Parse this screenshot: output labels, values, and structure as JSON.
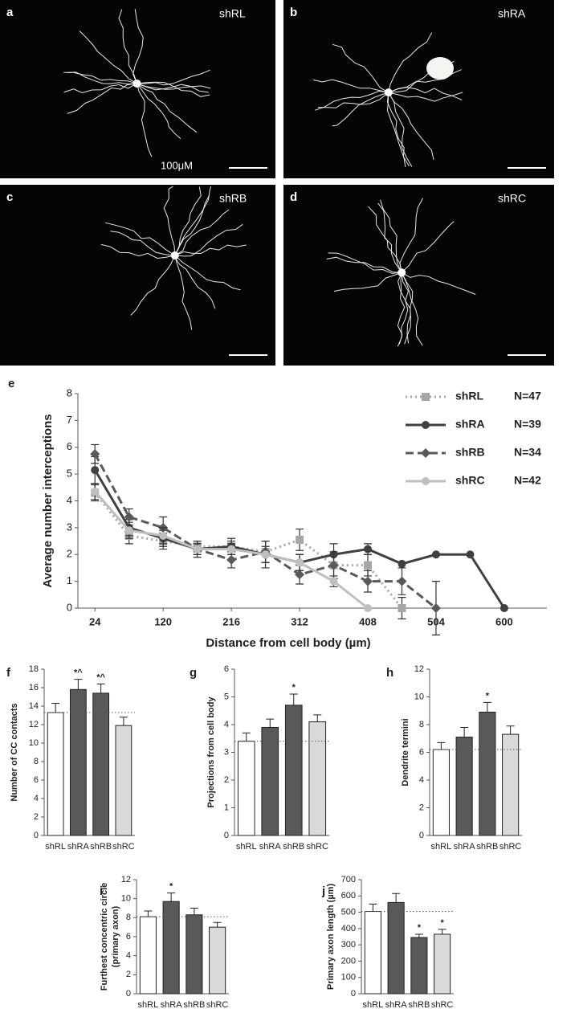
{
  "image_panels": [
    {
      "letter": "a",
      "label": "shRL",
      "scale": "100μM"
    },
    {
      "letter": "b",
      "label": "shRA"
    },
    {
      "letter": "c",
      "label": "shRB"
    },
    {
      "letter": "d",
      "label": "shRC"
    }
  ],
  "chart_data": [
    {
      "type": "line",
      "panel": "e",
      "ylabel": "Average number interceptions",
      "xlabel": "Distance from cell body (µm)",
      "x": [
        24,
        72,
        120,
        168,
        216,
        264,
        312,
        360,
        408,
        456,
        504,
        552,
        600
      ],
      "xlim": [
        0,
        660
      ],
      "xticks": [
        24,
        120,
        216,
        312,
        408,
        504,
        600
      ],
      "ylim": [
        0,
        8
      ],
      "yticks": [
        0,
        1,
        2,
        3,
        4,
        5,
        6,
        7,
        8
      ],
      "series": [
        {
          "name": "shRL",
          "note": "N=47",
          "color": "#a6a6a6",
          "line_style": "dotted",
          "marker": "square",
          "values": [
            4.3,
            2.7,
            2.5,
            2.3,
            2.3,
            2.1,
            2.55,
            1.6,
            1.6,
            0,
            null,
            null,
            null
          ],
          "errors": [
            0.3,
            0.3,
            0.3,
            0.2,
            0.2,
            0.4,
            0.4,
            0.5,
            0.4,
            0.4,
            null,
            null,
            null
          ]
        },
        {
          "name": "shRA",
          "note": "N=39",
          "color": "#404040",
          "line_style": "solid",
          "marker": "circle",
          "values": [
            5.15,
            3.0,
            2.6,
            2.2,
            2.3,
            2.0,
            1.7,
            2.0,
            2.2,
            1.65,
            2.0,
            2.0,
            0
          ],
          "errors": [
            0.5,
            0.3,
            0.3,
            0.2,
            0.3,
            0.5,
            0.3,
            0.4,
            0.2,
            null,
            null,
            null,
            null
          ]
        },
        {
          "name": "shRB",
          "note": "N=34",
          "color": "#595959",
          "line_style": "dashed",
          "marker": "diamond",
          "values": [
            5.75,
            3.4,
            3.0,
            2.2,
            1.8,
            2.1,
            1.25,
            1.6,
            1.0,
            1.0,
            0,
            null,
            null
          ],
          "errors": [
            0.35,
            0.3,
            0.4,
            0.3,
            0.3,
            0.4,
            0.35,
            0.5,
            0.4,
            0.5,
            1.0,
            null,
            null
          ]
        },
        {
          "name": "shRC",
          "note": "N=42",
          "color": "#bfbfbf",
          "line_style": "solid",
          "marker": "circle",
          "values": [
            4.35,
            2.9,
            2.7,
            2.2,
            2.2,
            2.0,
            1.7,
            1.0,
            0,
            null,
            null,
            null,
            null
          ],
          "errors": [
            0.3,
            0.3,
            0.3,
            0.2,
            0.2,
            0.3,
            0.3,
            0.2,
            null,
            null,
            null,
            null,
            null
          ]
        }
      ]
    },
    {
      "type": "bar",
      "panel": "f",
      "ylabel": [
        "Number of  CC contacts"
      ],
      "categories": [
        "shRL",
        "shRA",
        "shRB",
        "shRC"
      ],
      "values": [
        13.3,
        15.8,
        15.4,
        11.9
      ],
      "errors": [
        1.0,
        1.1,
        1.0,
        0.9
      ],
      "annotations": [
        null,
        "*^",
        "*^",
        null
      ],
      "colors": [
        "#ffffff",
        "#595959",
        "#595959",
        "#d9d9d9"
      ],
      "reference_line": true,
      "ylim": [
        0,
        18
      ],
      "yticks": [
        0,
        2,
        4,
        6,
        8,
        10,
        12,
        14,
        16,
        18
      ]
    },
    {
      "type": "bar",
      "panel": "g",
      "ylabel": [
        "Projections from cell body"
      ],
      "categories": [
        "shRL",
        "shRA",
        "shRB",
        "shRC"
      ],
      "values": [
        3.4,
        3.9,
        4.7,
        4.1
      ],
      "errors": [
        0.3,
        0.3,
        0.4,
        0.25
      ],
      "annotations": [
        null,
        null,
        "*",
        null
      ],
      "colors": [
        "#ffffff",
        "#595959",
        "#595959",
        "#d9d9d9"
      ],
      "reference_line": true,
      "ylim": [
        0,
        6
      ],
      "yticks": [
        0,
        1,
        2,
        3,
        4,
        5,
        6
      ]
    },
    {
      "type": "bar",
      "panel": "h",
      "ylabel": [
        "Dendrite termini"
      ],
      "categories": [
        "shRL",
        "shRA",
        "shRB",
        "shRC"
      ],
      "values": [
        6.2,
        7.1,
        8.9,
        7.3
      ],
      "errors": [
        0.5,
        0.7,
        0.7,
        0.6
      ],
      "annotations": [
        null,
        null,
        "*",
        null
      ],
      "colors": [
        "#ffffff",
        "#595959",
        "#595959",
        "#d9d9d9"
      ],
      "reference_line": true,
      "ylim": [
        0,
        12
      ],
      "yticks": [
        0,
        2,
        4,
        6,
        8,
        10,
        12
      ]
    },
    {
      "type": "bar",
      "panel": "i",
      "ylabel": [
        "Furthest concentric circle",
        "(primary axon)"
      ],
      "categories": [
        "shRL",
        "shRA",
        "shRB",
        "shRC"
      ],
      "values": [
        8.1,
        9.7,
        8.3,
        7.0
      ],
      "errors": [
        0.6,
        0.9,
        0.7,
        0.5
      ],
      "annotations": [
        null,
        "*",
        null,
        null
      ],
      "colors": [
        "#ffffff",
        "#595959",
        "#595959",
        "#d9d9d9"
      ],
      "reference_line": true,
      "ylim": [
        0,
        12
      ],
      "yticks": [
        0,
        2,
        4,
        6,
        8,
        10,
        12
      ]
    },
    {
      "type": "bar",
      "panel": "j",
      "ylabel": [
        "Primary axon length (µm)"
      ],
      "categories": [
        "shRL",
        "shRA",
        "shRB",
        "shRC"
      ],
      "values": [
        505,
        560,
        345,
        365
      ],
      "errors": [
        45,
        55,
        20,
        30
      ],
      "annotations": [
        null,
        null,
        "*",
        "*"
      ],
      "colors": [
        "#ffffff",
        "#595959",
        "#595959",
        "#d9d9d9"
      ],
      "reference_line": true,
      "ylim": [
        0,
        700
      ],
      "yticks": [
        0,
        100,
        200,
        300,
        400,
        500,
        600,
        700
      ]
    }
  ]
}
